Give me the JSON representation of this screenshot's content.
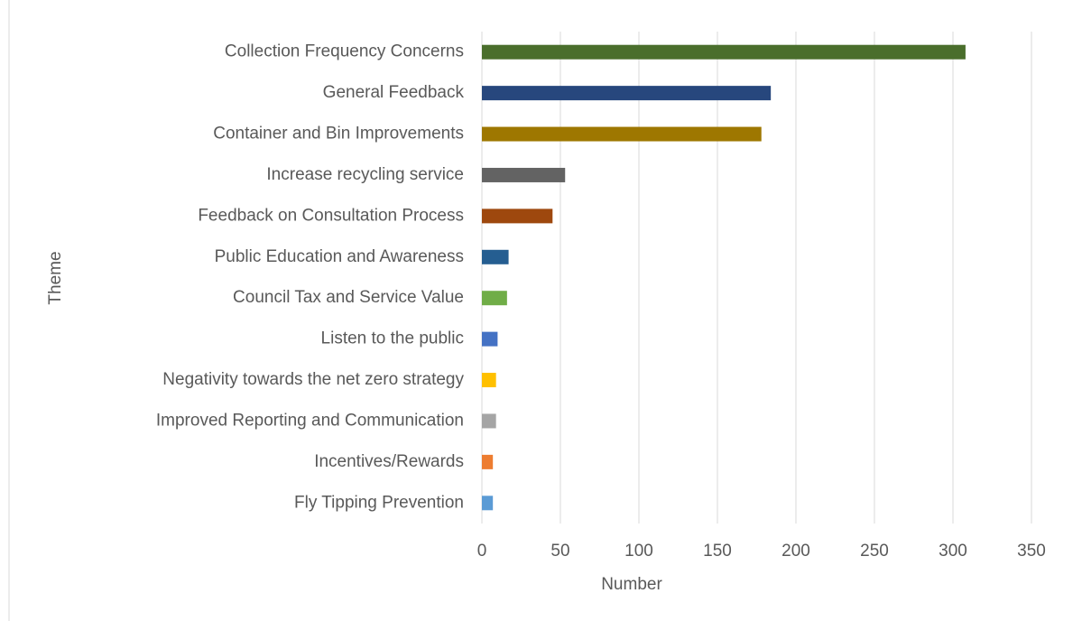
{
  "chart_data": {
    "type": "barh",
    "categories": [
      "Collection Frequency Concerns",
      "General Feedback",
      "Container and Bin Improvements",
      "Increase recycling service",
      "Feedback on Consultation Process",
      "Public Education and Awareness",
      "Council Tax and Service Value",
      "Listen to the public",
      "Negativity towards the net zero strategy",
      "Improved Reporting and Communication",
      "Incentives/Rewards",
      "Fly Tipping Prevention"
    ],
    "values": [
      308,
      184,
      178,
      53,
      45,
      17,
      16,
      10,
      9,
      9,
      7,
      7
    ],
    "colors": [
      "#4a6e2c",
      "#27477d",
      "#9e7700",
      "#636363",
      "#9e480e",
      "#255e91",
      "#70ad47",
      "#4472c4",
      "#ffc000",
      "#a5a5a5",
      "#ed7d31",
      "#5b9bd5"
    ],
    "xlabel": "Number",
    "ylabel": "Theme",
    "xlim": [
      0,
      350
    ],
    "xticks": [
      0,
      50,
      100,
      150,
      200,
      250,
      300,
      350
    ],
    "grid": true
  }
}
